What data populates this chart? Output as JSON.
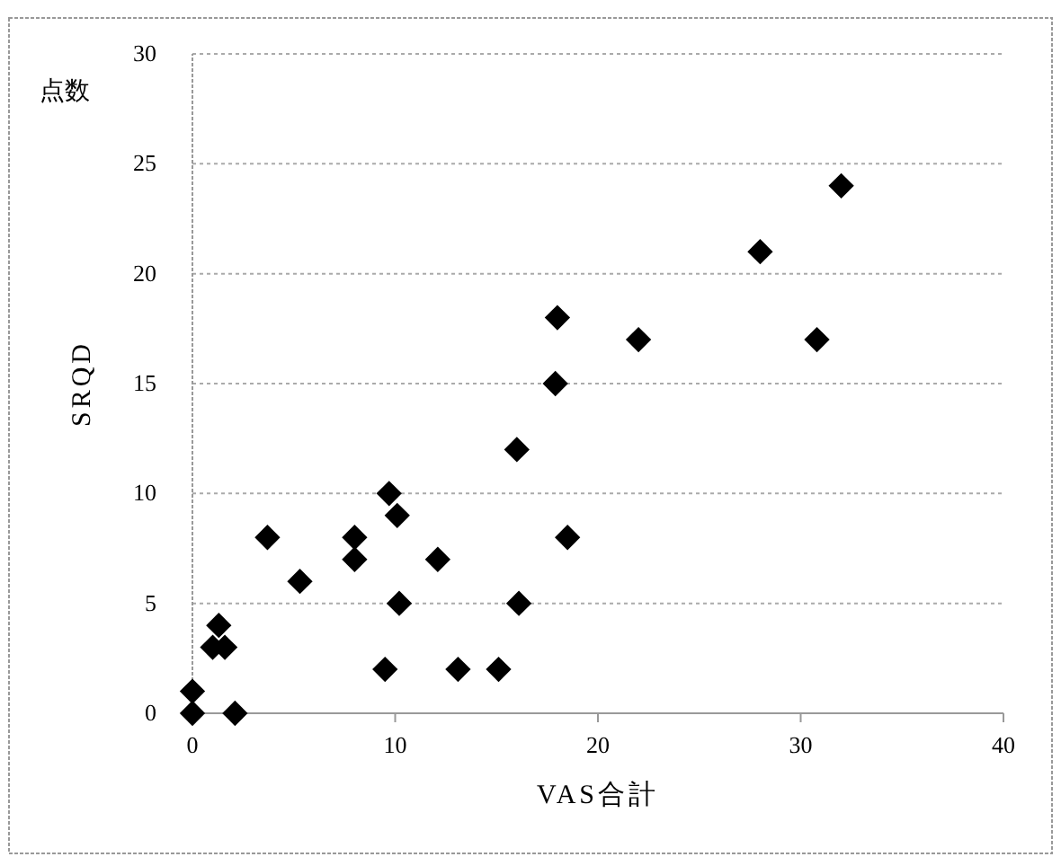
{
  "chart_data": {
    "type": "scatter",
    "xlabel": "VAS合計",
    "ylabel": "SRQD",
    "annotations": [
      "点数"
    ],
    "x": [
      0,
      0,
      1,
      1.3,
      1.6,
      2.1,
      3.7,
      5.3,
      8,
      8,
      9.5,
      9.7,
      10.1,
      10.2,
      12.1,
      13.1,
      15.1,
      16,
      16.1,
      18,
      17.9,
      18.5,
      22,
      28,
      30.8,
      32
    ],
    "values": [
      0,
      1,
      3,
      4,
      3,
      0,
      8,
      6,
      8,
      7,
      2,
      10,
      9,
      5,
      7,
      2,
      2,
      12,
      5,
      18,
      15,
      8,
      17,
      21,
      17,
      24
    ],
    "color": "#000000",
    "marker": "diamond",
    "xlim": [
      0,
      40
    ],
    "xticks": [
      0,
      10,
      20,
      30,
      40
    ],
    "ylim": [
      0,
      30
    ],
    "yticks": [
      0,
      5,
      10,
      15,
      20,
      25,
      30
    ],
    "grid": "y"
  }
}
